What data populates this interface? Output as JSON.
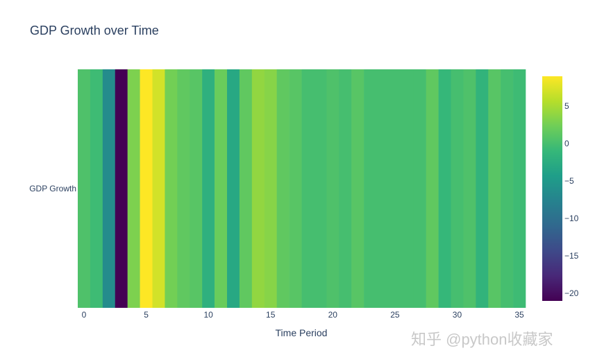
{
  "chart_data": {
    "type": "heatmap",
    "title": "GDP Growth over Time",
    "xlabel": "Time Period",
    "ylabel": "",
    "y_categories": [
      "GDP Growth"
    ],
    "x": [
      0,
      1,
      2,
      3,
      4,
      5,
      6,
      7,
      8,
      9,
      10,
      11,
      12,
      13,
      14,
      15,
      16,
      17,
      18,
      19,
      20,
      21,
      22,
      23,
      24,
      25,
      26,
      27,
      28,
      29,
      30,
      31,
      32,
      33,
      34,
      35
    ],
    "values": [
      0.5,
      -0.5,
      -6.5,
      -21,
      3,
      9,
      7,
      2.5,
      1.5,
      1,
      -2,
      2,
      -3,
      1.5,
      4,
      3.5,
      1.5,
      1,
      0,
      0,
      0.5,
      0,
      1,
      0,
      0,
      0,
      0,
      0,
      1.5,
      -1,
      0,
      0.5,
      -1.5,
      1,
      0,
      -0.5
    ],
    "xlim": [
      -0.5,
      35.5
    ],
    "x_ticks": [
      0,
      5,
      10,
      15,
      20,
      25,
      30,
      35
    ],
    "colorscale": "Viridis",
    "zlim": [
      -21,
      9
    ],
    "colorbar_ticks": [
      5,
      0,
      -5,
      -10,
      -15,
      -20
    ],
    "colorbar_tick_labels": [
      "5",
      "0",
      "−5",
      "−10",
      "−15",
      "−20"
    ],
    "grid": false
  },
  "watermark": "知乎 @python收藏家"
}
